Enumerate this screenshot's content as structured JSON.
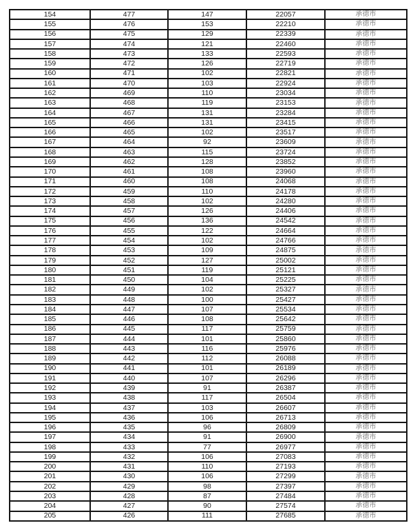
{
  "colors": {
    "background": "#ffffff",
    "table_border": "#161616",
    "number_text": "#1f1f1f",
    "city_text": "#8a8a8a"
  },
  "table": {
    "rows": [
      [
        "154",
        "477",
        "147",
        "22057",
        "承德市"
      ],
      [
        "155",
        "476",
        "153",
        "22210",
        "承德市"
      ],
      [
        "156",
        "475",
        "129",
        "22339",
        "承德市"
      ],
      [
        "157",
        "474",
        "121",
        "22460",
        "承德市"
      ],
      [
        "158",
        "473",
        "133",
        "22593",
        "承德市"
      ],
      [
        "159",
        "472",
        "126",
        "22719",
        "承德市"
      ],
      [
        "160",
        "471",
        "102",
        "22821",
        "承德市"
      ],
      [
        "161",
        "470",
        "103",
        "22924",
        "承德市"
      ],
      [
        "162",
        "469",
        "110",
        "23034",
        "承德市"
      ],
      [
        "163",
        "468",
        "119",
        "23153",
        "承德市"
      ],
      [
        "164",
        "467",
        "131",
        "23284",
        "承德市"
      ],
      [
        "165",
        "466",
        "131",
        "23415",
        "承德市"
      ],
      [
        "166",
        "465",
        "102",
        "23517",
        "承德市"
      ],
      [
        "167",
        "464",
        "92",
        "23609",
        "承德市"
      ],
      [
        "168",
        "463",
        "115",
        "23724",
        "承德市"
      ],
      [
        "169",
        "462",
        "128",
        "23852",
        "承德市"
      ],
      [
        "170",
        "461",
        "108",
        "23960",
        "承德市"
      ],
      [
        "171",
        "460",
        "108",
        "24068",
        "承德市"
      ],
      [
        "172",
        "459",
        "110",
        "24178",
        "承德市"
      ],
      [
        "173",
        "458",
        "102",
        "24280",
        "承德市"
      ],
      [
        "174",
        "457",
        "126",
        "24406",
        "承德市"
      ],
      [
        "175",
        "456",
        "136",
        "24542",
        "承德市"
      ],
      [
        "176",
        "455",
        "122",
        "24664",
        "承德市"
      ],
      [
        "177",
        "454",
        "102",
        "24766",
        "承德市"
      ],
      [
        "178",
        "453",
        "109",
        "24875",
        "承德市"
      ],
      [
        "179",
        "452",
        "127",
        "25002",
        "承德市"
      ],
      [
        "180",
        "451",
        "119",
        "25121",
        "承德市"
      ],
      [
        "181",
        "450",
        "104",
        "25225",
        "承德市"
      ],
      [
        "182",
        "449",
        "102",
        "25327",
        "承德市"
      ],
      [
        "183",
        "448",
        "100",
        "25427",
        "承德市"
      ],
      [
        "184",
        "447",
        "107",
        "25534",
        "承德市"
      ],
      [
        "185",
        "446",
        "108",
        "25642",
        "承德市"
      ],
      [
        "186",
        "445",
        "117",
        "25759",
        "承德市"
      ],
      [
        "187",
        "444",
        "101",
        "25860",
        "承德市"
      ],
      [
        "188",
        "443",
        "116",
        "25976",
        "承德市"
      ],
      [
        "189",
        "442",
        "112",
        "26088",
        "承德市"
      ],
      [
        "190",
        "441",
        "101",
        "26189",
        "承德市"
      ],
      [
        "191",
        "440",
        "107",
        "26296",
        "承德市"
      ],
      [
        "192",
        "439",
        "91",
        "26387",
        "承德市"
      ],
      [
        "193",
        "438",
        "117",
        "26504",
        "承德市"
      ],
      [
        "194",
        "437",
        "103",
        "26607",
        "承德市"
      ],
      [
        "195",
        "436",
        "106",
        "26713",
        "承德市"
      ],
      [
        "196",
        "435",
        "96",
        "26809",
        "承德市"
      ],
      [
        "197",
        "434",
        "91",
        "26900",
        "承德市"
      ],
      [
        "198",
        "433",
        "77",
        "26977",
        "承德市"
      ],
      [
        "199",
        "432",
        "106",
        "27083",
        "承德市"
      ],
      [
        "200",
        "431",
        "110",
        "27193",
        "承德市"
      ],
      [
        "201",
        "430",
        "106",
        "27299",
        "承德市"
      ],
      [
        "202",
        "429",
        "98",
        "27397",
        "承德市"
      ],
      [
        "203",
        "428",
        "87",
        "27484",
        "承德市"
      ],
      [
        "204",
        "427",
        "90",
        "27574",
        "承德市"
      ],
      [
        "205",
        "426",
        "111",
        "27685",
        "承德市"
      ]
    ]
  }
}
